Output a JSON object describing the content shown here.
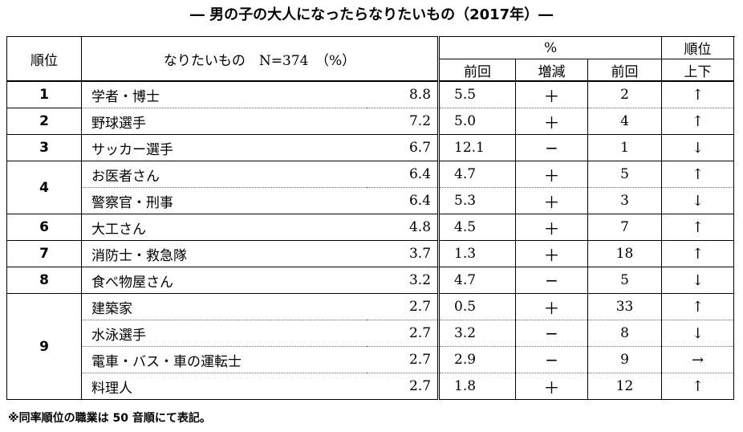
{
  "title": "― 男の子の大人になったらなりたいもの（2017年）―",
  "header": {
    "rank": "順位",
    "job": "なりたいもの　N=374　（%）",
    "pct_group": "%",
    "prev": "前回",
    "change": "増減",
    "rank_group": "順位",
    "prev_rank": "前回",
    "updown": "上下"
  },
  "rows": [
    {
      "rank": "1",
      "job": "学者・博士",
      "pct": "8.8",
      "prev": "5.5",
      "change": "＋",
      "prev_rank": "2",
      "arrow": "↑"
    },
    {
      "rank": "2",
      "job": "野球選手",
      "pct": "7.2",
      "prev": "5.0",
      "change": "＋",
      "prev_rank": "4",
      "arrow": "↑"
    },
    {
      "rank": "3",
      "job": "サッカー選手",
      "pct": "6.7",
      "prev": "12.1",
      "change": "−",
      "prev_rank": "1",
      "arrow": "↓"
    },
    {
      "rank": "4",
      "job": "お医者さん",
      "pct": "6.4",
      "prev": "4.7",
      "change": "＋",
      "prev_rank": "5",
      "arrow": "↑"
    },
    {
      "rank": "4",
      "job": "警察官・刑事",
      "pct": "6.4",
      "prev": "5.3",
      "change": "＋",
      "prev_rank": "3",
      "arrow": "↓"
    },
    {
      "rank": "6",
      "job": "大工さん",
      "pct": "4.8",
      "prev": "4.5",
      "change": "＋",
      "prev_rank": "7",
      "arrow": "↑"
    },
    {
      "rank": "7",
      "job": "消防士・救急隊",
      "pct": "3.7",
      "prev": "1.3",
      "change": "＋",
      "prev_rank": "18",
      "arrow": "↑"
    },
    {
      "rank": "8",
      "job": "食べ物屋さん",
      "pct": "3.2",
      "prev": "4.7",
      "change": "−",
      "prev_rank": "5",
      "arrow": "↓"
    },
    {
      "rank": "9",
      "job": "建築家",
      "pct": "2.7",
      "prev": "0.5",
      "change": "＋",
      "prev_rank": "33",
      "arrow": "↑"
    },
    {
      "rank": "9",
      "job": "水泳選手",
      "pct": "2.7",
      "prev": "3.2",
      "change": "−",
      "prev_rank": "8",
      "arrow": "↓"
    },
    {
      "rank": "9",
      "job": "電車・バス・車の運転士",
      "pct": "2.7",
      "prev": "2.9",
      "change": "−",
      "prev_rank": "9",
      "arrow": "→"
    },
    {
      "rank": "9",
      "job": "料理人",
      "pct": "2.7",
      "prev": "1.8",
      "change": "＋",
      "prev_rank": "12",
      "arrow": "↑"
    }
  ],
  "note": "※同率順位の職業は 50 音順にて表記。"
}
